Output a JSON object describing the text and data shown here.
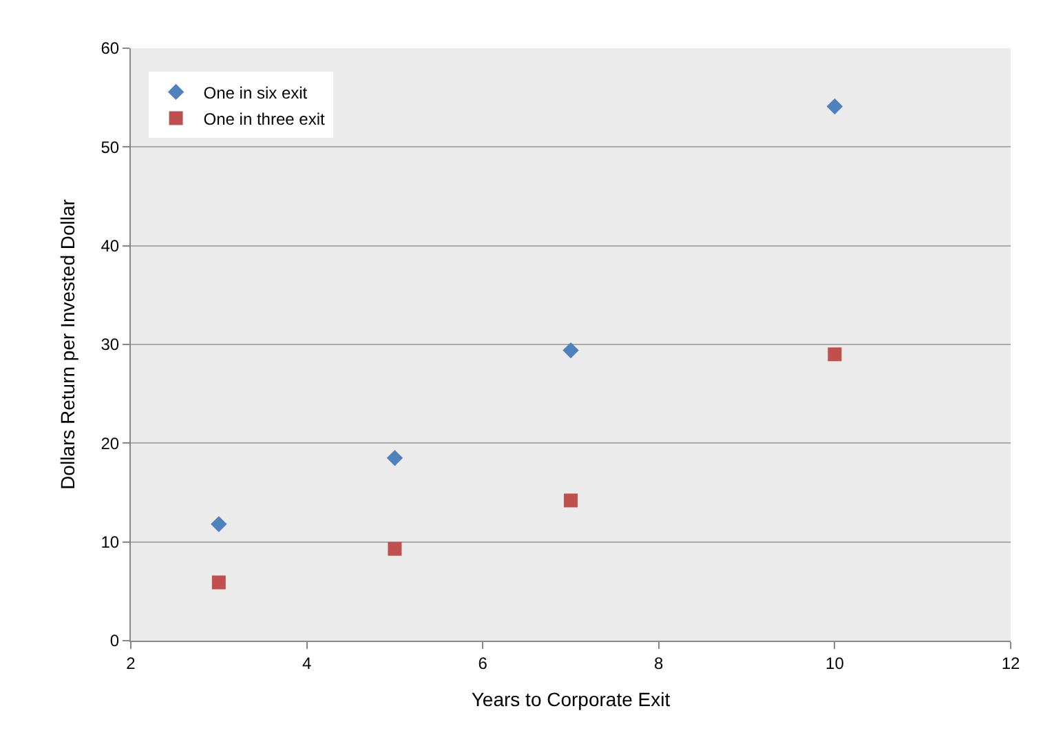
{
  "chart_data": {
    "type": "scatter",
    "xlabel": "Years to Corporate Exit",
    "ylabel": "Dollars Return per Invested Dollar",
    "x": [
      3,
      5,
      7,
      10
    ],
    "series": [
      {
        "name": "One in six exit",
        "color": "#4f81bd",
        "values": [
          11.8,
          18.5,
          29.4,
          54.1
        ],
        "marker": "diamond"
      },
      {
        "name": "One in three exit",
        "color": "#c0504d",
        "values": [
          5.9,
          9.3,
          14.2,
          29.0
        ],
        "marker": "square"
      }
    ],
    "xlim": [
      2,
      12
    ],
    "xticks": [
      2,
      4,
      6,
      8,
      10,
      12
    ],
    "ylim": [
      0,
      60
    ],
    "yticks": [
      0,
      10,
      20,
      30,
      40,
      50,
      60
    ],
    "grid": "y",
    "legend": "top left"
  }
}
